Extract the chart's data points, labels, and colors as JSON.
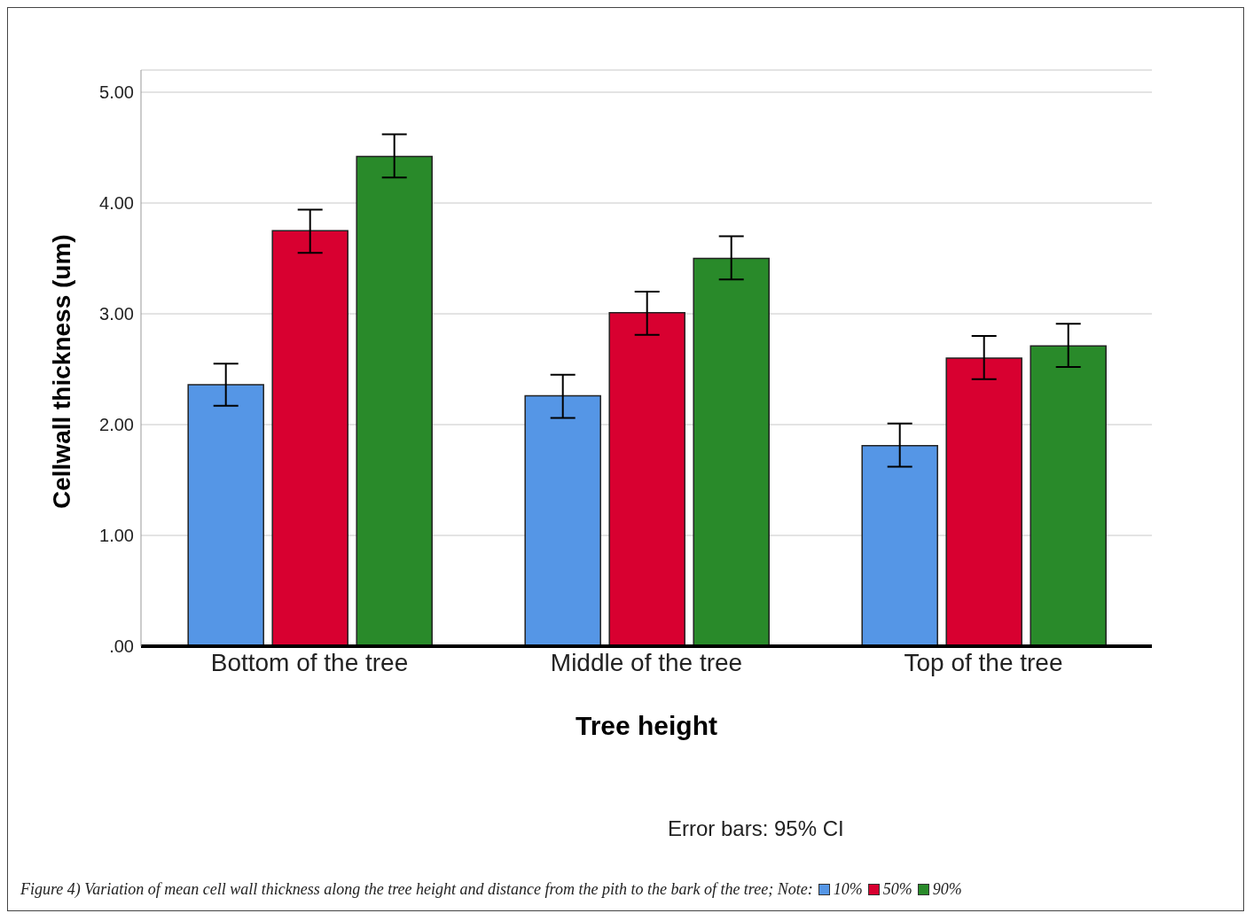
{
  "chart_data": {
    "type": "bar",
    "xlabel": "Tree height",
    "ylabel": "Cellwall thickness (um)",
    "categories": [
      "Bottom of the tree",
      "Middle of the tree",
      "Top of the tree"
    ],
    "series": [
      {
        "name": "10%",
        "color": "#5596e6",
        "values": [
          2.36,
          2.26,
          1.81
        ],
        "errors": [
          [
            2.17,
            2.55
          ],
          [
            2.06,
            2.45
          ],
          [
            1.62,
            2.01
          ]
        ]
      },
      {
        "name": "50%",
        "color": "#d80030",
        "values": [
          3.75,
          3.01,
          2.6
        ],
        "errors": [
          [
            3.55,
            3.94
          ],
          [
            2.81,
            3.2
          ],
          [
            2.41,
            2.8
          ]
        ]
      },
      {
        "name": "90%",
        "color": "#298a2a",
        "values": [
          4.42,
          3.5,
          2.71
        ],
        "errors": [
          [
            4.23,
            4.62
          ],
          [
            3.31,
            3.7
          ],
          [
            2.52,
            2.91
          ]
        ]
      }
    ],
    "ylim": [
      0,
      5.2
    ],
    "yticks": [
      {
        "value": 0,
        "label": ".00"
      },
      {
        "value": 1,
        "label": "1.00"
      },
      {
        "value": 2,
        "label": "2.00"
      },
      {
        "value": 3,
        "label": "3.00"
      },
      {
        "value": 4,
        "label": "4.00"
      },
      {
        "value": 5,
        "label": "5.00"
      }
    ],
    "grid": "y",
    "legend": "bottom",
    "annotations": [
      "Error bars: 95% CI",
      "Figure 4) Variation of mean cell wall thickness along the tree height and distance from the pith to the bark of the tree; Note:"
    ]
  }
}
